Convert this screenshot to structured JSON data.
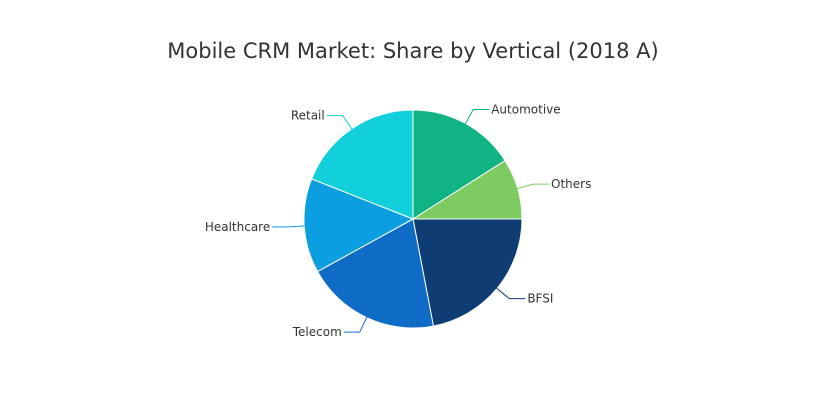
{
  "chart_data": {
    "type": "pie",
    "title": "Mobile CRM Market: Share by Vertical (2018 A)",
    "legend": "none",
    "slices": [
      {
        "name": "Automotive",
        "value": 16,
        "color": "#10b384"
      },
      {
        "name": "Others",
        "value": 9,
        "color": "#7ecb62"
      },
      {
        "name": "BFSI",
        "value": 22,
        "color": "#0d3d73"
      },
      {
        "name": "Telecom",
        "value": 20,
        "color": "#0f6cc6"
      },
      {
        "name": "Healthcare",
        "value": 14,
        "color": "#0b9ee0"
      },
      {
        "name": "Retail",
        "value": 19,
        "color": "#11cfdb"
      }
    ]
  }
}
